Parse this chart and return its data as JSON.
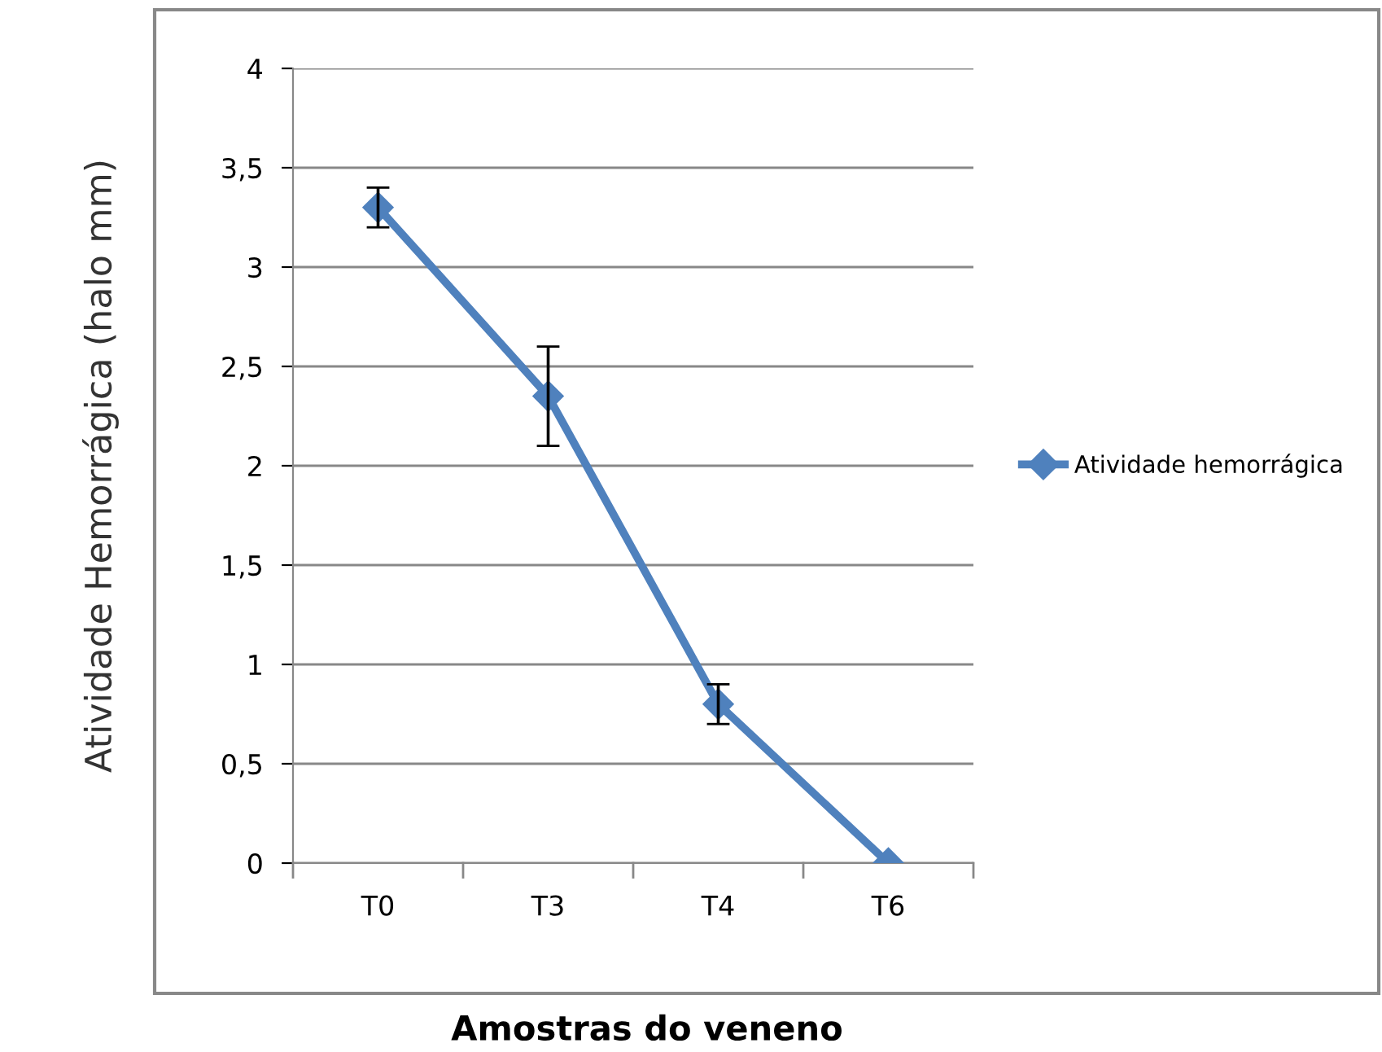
{
  "chart_data": {
    "type": "line",
    "xlabel": "Amostras do veneno",
    "ylabel": "Atividade Hemorrágica (halo mm)",
    "categories": [
      "T0",
      "T3",
      "T4",
      "T6"
    ],
    "series": [
      {
        "name": "Atividade hemorrágica",
        "color": "#4f81bd",
        "values": [
          3.3,
          2.35,
          0.8,
          0.0
        ],
        "errors": [
          0.1,
          0.25,
          0.1,
          null
        ]
      }
    ],
    "ylim": [
      0,
      4
    ],
    "yticks": [
      0,
      {
        "value": 0.5,
        "label": "0,5"
      },
      1,
      {
        "value": 1.5,
        "label": "1,5"
      },
      2,
      {
        "value": 2.5,
        "label": "2,5"
      },
      3,
      {
        "value": 3.5,
        "label": "3,5"
      },
      4
    ],
    "grid": "y",
    "legend": "right",
    "marker": "diamond",
    "line_style": "solid"
  }
}
